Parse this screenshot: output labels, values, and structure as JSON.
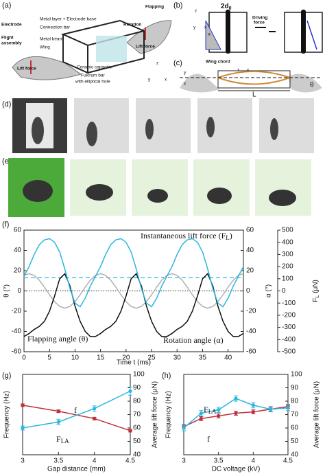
{
  "figures": {
    "panel_labels": [
      "(a)",
      "(b)",
      "(c)",
      "(d)",
      "(e)"
    ],
    "a": {
      "electrode": "Electrode",
      "flight": "Flight",
      "assembly": "assembly",
      "metal_layer": "Metal layer + Electrode base",
      "connection_bar": "Connection bar",
      "metal_beam": "Metal beam",
      "wing": "Wing",
      "rotation": "Rotation",
      "flapping": "Flapping",
      "lift_right": "Lift force",
      "lift_left": "Lift force",
      "capacitor": "Ceramic capacitor",
      "fulcrum": "Fulcrum bar",
      "hole": "with elliptical hole",
      "z": "z",
      "y": "y",
      "x": "x"
    },
    "b": {
      "width": {
        "text": "2d",
        "sub": "0"
      },
      "driving": "Driving",
      "force": "force",
      "alpha": "α",
      "z": "z",
      "y": "y",
      "x": "x"
    },
    "c": {
      "wing_chord": "Wing chord",
      "length": "L",
      "x": "x",
      "z": "z",
      "theta": "θ",
      "y": "y",
      "x2": "x"
    }
  },
  "chart_data": [
    {
      "type": "line",
      "panel": "(f)",
      "xlabel": "Time t (ms)",
      "ylabel": "θ (°)",
      "y2label": "α (°)",
      "y3label": {
        "text": "F",
        "sub": "L",
        "tail": " (μN)"
      },
      "x": [
        0,
        1,
        2,
        3,
        4,
        5,
        6,
        7,
        8,
        9,
        10,
        11,
        12,
        13,
        14,
        15,
        16,
        17,
        18,
        19,
        20,
        21,
        22,
        23,
        24,
        25,
        26,
        27,
        28,
        29,
        30,
        31,
        32,
        33,
        34,
        35,
        36,
        37,
        38,
        39,
        40,
        41,
        42,
        43
      ],
      "xlim": [
        0,
        43
      ],
      "xticks": [
        0,
        5,
        10,
        15,
        20,
        25,
        30,
        35,
        40
      ],
      "ylim": [
        -60,
        60
      ],
      "yticks": [
        60,
        40,
        20,
        0,
        -20,
        -40,
        -60
      ],
      "y2lim": [
        -60,
        60
      ],
      "y2ticks": [
        60,
        40,
        20,
        0,
        -20,
        -40,
        -60
      ],
      "y3lim": [
        -500,
        500
      ],
      "y3ticks": [
        500,
        400,
        300,
        200,
        100,
        0,
        -100,
        -200,
        -300,
        -400,
        -500
      ],
      "series": [
        {
          "name": "Flapping angle (θ)",
          "color": "#b0b0b0",
          "axis": "y",
          "values": [
            15.3,
            17,
            15.3,
            10.6,
            3.8,
            -3.8,
            -10.6,
            -15.3,
            -17,
            -15.3,
            -10.6,
            -3.8,
            3.8,
            10.6,
            15.3,
            17,
            15.3,
            10.6,
            3.8,
            -3.8,
            -10.6,
            -15.3,
            -17,
            -15.3,
            -10.6,
            -3.8,
            3.8,
            10.6,
            15.3,
            17,
            15.3,
            10.6,
            3.8,
            -3.8,
            -10.6,
            -15.3,
            -17,
            -15.3,
            -10.6,
            -3.8,
            3.8,
            10.6,
            15.3,
            17
          ]
        },
        {
          "name": "Rotation angle (α)",
          "color": "#111111",
          "axis": "y2",
          "values": [
            -45,
            -42,
            -38,
            -35,
            -30,
            -20,
            -5,
            12,
            17,
            5,
            -15,
            -30,
            -40,
            -45,
            -45,
            -42,
            -38,
            -35,
            -30,
            -20,
            -5,
            12,
            17,
            5,
            -15,
            -30,
            -40,
            -45,
            -45,
            -42,
            -38,
            -35,
            -30,
            -20,
            -5,
            12,
            17,
            5,
            -15,
            -30,
            -40,
            -45,
            -45,
            -42
          ]
        },
        {
          "name": {
            "text": "Instantaneous lift force (F",
            "sub": "L",
            "tail": ")"
          },
          "color": "#29b6e0",
          "axis": "y3",
          "values": [
            120,
            200,
            300,
            380,
            420,
            430,
            400,
            320,
            180,
            20,
            -100,
            -130,
            -60,
            40,
            120,
            200,
            300,
            380,
            420,
            430,
            400,
            320,
            180,
            20,
            -100,
            -130,
            -60,
            40,
            120,
            200,
            300,
            380,
            420,
            430,
            400,
            320,
            180,
            20,
            -100,
            -130,
            -60,
            40,
            120,
            200
          ]
        }
      ],
      "hlines": [
        {
          "value": 0,
          "axis": "y",
          "color": "#111111",
          "style": "dotted"
        },
        {
          "value": 110,
          "axis": "y3",
          "color": "#29b6e0",
          "style": "dashed"
        }
      ]
    },
    {
      "type": "line",
      "panel": "(g)",
      "xlabel": "Gap distance (mm)",
      "ylabel": "Frequency (Hz)",
      "y2label": "Average lift force (μN)",
      "x": [
        3,
        3.5,
        4,
        4.5
      ],
      "xlim": [
        3,
        4.5
      ],
      "xticks": [
        3,
        3.5,
        4,
        4.5
      ],
      "ylim": [
        40,
        100
      ],
      "y2lim": [
        40,
        100
      ],
      "y2ticks": [
        40,
        50,
        60,
        70,
        80,
        90,
        100
      ],
      "series": [
        {
          "name": "f",
          "color": "#c0303a",
          "axis": "y",
          "values": [
            77,
            72.5,
            67,
            58
          ],
          "errors": [
            1,
            1,
            1,
            1
          ]
        },
        {
          "name": {
            "text": "F",
            "sub": "LA"
          },
          "color": "#29b6e0",
          "axis": "y2",
          "values": [
            60,
            64.5,
            74.5,
            87.5
          ],
          "errors": [
            1.5,
            2,
            2,
            3
          ]
        }
      ]
    },
    {
      "type": "line",
      "panel": "(h)",
      "xlabel": "DC voltage (kV)",
      "ylabel": "Frequency (Hz)",
      "y2label": "Average lift force (μN)",
      "x": [
        3,
        3.25,
        3.5,
        3.75,
        4,
        4.25,
        4.5
      ],
      "xlim": [
        3,
        4.5
      ],
      "xticks": [
        3,
        3.5,
        4,
        4.5
      ],
      "ylim": [
        40,
        100
      ],
      "y2lim": [
        40,
        100
      ],
      "y2ticks": [
        40,
        50,
        60,
        70,
        80,
        90,
        100
      ],
      "series": [
        {
          "name": "f",
          "color": "#c0303a",
          "axis": "y",
          "values": [
            61,
            67,
            69,
            71,
            72,
            74,
            76
          ],
          "errors": [
            1.5,
            1.5,
            1.5,
            1.5,
            1.5,
            1.5,
            1.5
          ]
        },
        {
          "name": {
            "text": "F",
            "sub": "LA"
          },
          "color": "#29b6e0",
          "axis": "y2",
          "values": [
            60,
            71,
            73.5,
            82,
            77,
            74,
            75
          ],
          "errors": [
            2,
            2,
            2,
            2,
            2,
            2,
            2
          ]
        }
      ]
    }
  ]
}
